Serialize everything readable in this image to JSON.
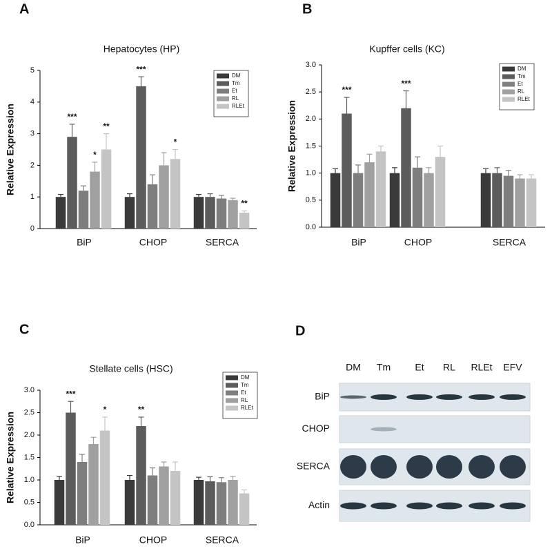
{
  "chart_data": [
    {
      "type": "bar",
      "panel": "A",
      "title": "Hepatocytes (HP)",
      "ylabel": "Relative Expression",
      "categories": [
        "BiP",
        "CHOP",
        "SERCA"
      ],
      "ylim": [
        0,
        5
      ],
      "yticks": [
        0,
        1,
        2,
        3,
        4,
        5
      ],
      "legend": "upper right",
      "series": [
        {
          "name": "DM",
          "color": "#3a3a3a",
          "values": [
            1.0,
            1.0,
            1.0
          ],
          "errors": [
            0.08,
            0.1,
            0.08
          ],
          "annotations": [
            null,
            null,
            null
          ]
        },
        {
          "name": "Tm",
          "color": "#5c5c5c",
          "values": [
            2.9,
            4.5,
            1.0
          ],
          "errors": [
            0.4,
            0.3,
            0.1
          ],
          "annotations": [
            "***",
            "***",
            null
          ]
        },
        {
          "name": "Et",
          "color": "#7e7e7e",
          "values": [
            1.2,
            1.4,
            0.95
          ],
          "errors": [
            0.15,
            0.3,
            0.1
          ],
          "annotations": [
            null,
            null,
            null
          ]
        },
        {
          "name": "RL",
          "color": "#a0a0a0",
          "values": [
            1.8,
            2.0,
            0.9
          ],
          "errors": [
            0.3,
            0.4,
            0.06
          ],
          "annotations": [
            "*",
            null,
            null
          ]
        },
        {
          "name": "RLEt",
          "color": "#c4c4c4",
          "values": [
            2.5,
            2.2,
            0.5
          ],
          "errors": [
            0.5,
            0.3,
            0.06
          ],
          "annotations": [
            "**",
            "*",
            "**"
          ]
        }
      ]
    },
    {
      "type": "bar",
      "panel": "B",
      "title": "Kupffer cells (KC)",
      "ylabel": "Relative Expression",
      "categories": [
        "BiP",
        "CHOP",
        "SERCA"
      ],
      "ylim": [
        0,
        3
      ],
      "yticks": [
        {
          "value": 0,
          "label": "0.0"
        },
        0.5,
        {
          "value": 1,
          "label": "1.0"
        },
        1.5,
        {
          "value": 2,
          "label": "2.0"
        },
        2.5,
        {
          "value": 3,
          "label": "3.0"
        }
      ],
      "legend": "upper right",
      "series": [
        {
          "name": "DM",
          "color": "#3a3a3a",
          "values": [
            1.0,
            1.0,
            1.0
          ],
          "errors": [
            0.08,
            0.1,
            0.08
          ],
          "annotations": [
            null,
            null,
            null
          ]
        },
        {
          "name": "Tm",
          "color": "#5c5c5c",
          "values": [
            2.1,
            2.2,
            1.0
          ],
          "errors": [
            0.3,
            0.32,
            0.1
          ],
          "annotations": [
            "***",
            "***",
            null
          ]
        },
        {
          "name": "Et",
          "color": "#7e7e7e",
          "values": [
            1.0,
            1.1,
            0.95
          ],
          "errors": [
            0.15,
            0.2,
            0.1
          ],
          "annotations": [
            null,
            null,
            null
          ]
        },
        {
          "name": "RL",
          "color": "#a0a0a0",
          "values": [
            1.2,
            1.0,
            0.9
          ],
          "errors": [
            0.15,
            0.1,
            0.07
          ],
          "annotations": [
            null,
            null,
            null
          ]
        },
        {
          "name": "RLEt",
          "color": "#c4c4c4",
          "values": [
            1.4,
            1.3,
            0.9
          ],
          "errors": [
            0.1,
            0.2,
            0.07
          ],
          "annotations": [
            null,
            null,
            null
          ]
        }
      ]
    },
    {
      "type": "bar",
      "panel": "C",
      "title": "Stellate cells (HSC)",
      "ylabel": "Relative Expression",
      "categories": [
        "BiP",
        "CHOP",
        "SERCA"
      ],
      "ylim": [
        0,
        3
      ],
      "yticks": [
        {
          "value": 0,
          "label": "0.0"
        },
        0.5,
        {
          "value": 1,
          "label": "1.0"
        },
        1.5,
        {
          "value": 2,
          "label": "2.0"
        },
        2.5,
        {
          "value": 3,
          "label": "3.0"
        }
      ],
      "legend": "upper right",
      "series": [
        {
          "name": "DM",
          "color": "#3a3a3a",
          "values": [
            1.0,
            1.0,
            1.0
          ],
          "errors": [
            0.08,
            0.1,
            0.06
          ],
          "annotations": [
            null,
            null,
            null
          ]
        },
        {
          "name": "Tm",
          "color": "#5c5c5c",
          "values": [
            2.5,
            2.2,
            0.97
          ],
          "errors": [
            0.25,
            0.2,
            0.1
          ],
          "annotations": [
            "***",
            "**",
            null
          ]
        },
        {
          "name": "Et",
          "color": "#7e7e7e",
          "values": [
            1.4,
            1.1,
            0.95
          ],
          "errors": [
            0.17,
            0.17,
            0.1
          ],
          "annotations": [
            null,
            null,
            null
          ]
        },
        {
          "name": "RL",
          "color": "#a0a0a0",
          "values": [
            1.8,
            1.3,
            1.0
          ],
          "errors": [
            0.15,
            0.1,
            0.08
          ],
          "annotations": [
            null,
            null,
            null
          ]
        },
        {
          "name": "RLEt",
          "color": "#c4c4c4",
          "values": [
            2.1,
            1.2,
            0.7
          ],
          "errors": [
            0.3,
            0.2,
            0.08
          ],
          "annotations": [
            "*",
            null,
            null
          ]
        }
      ]
    }
  ],
  "blot": {
    "panel": "D",
    "lanes": [
      "DM",
      "Tm",
      "Et",
      "RL",
      "RLEt",
      "EFV"
    ],
    "rows": [
      "BiP",
      "CHOP",
      "SERCA",
      "Actin"
    ]
  }
}
